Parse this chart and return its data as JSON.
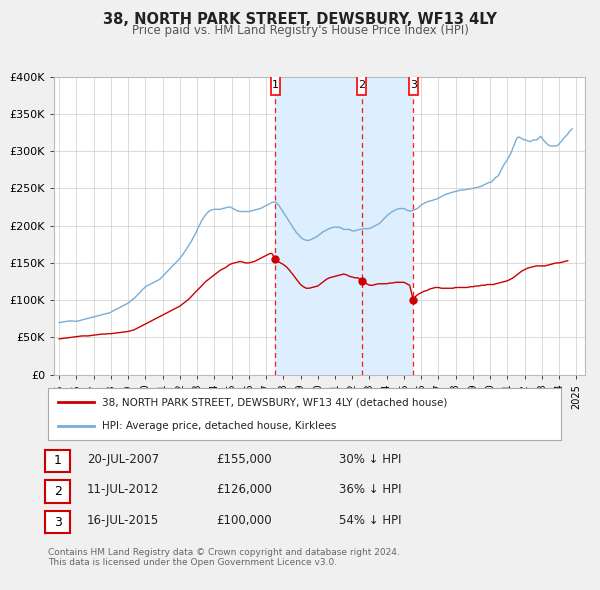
{
  "title": "38, NORTH PARK STREET, DEWSBURY, WF13 4LY",
  "subtitle": "Price paid vs. HM Land Registry's House Price Index (HPI)",
  "legend_property": "38, NORTH PARK STREET, DEWSBURY, WF13 4LY (detached house)",
  "legend_hpi": "HPI: Average price, detached house, Kirklees",
  "footer1": "Contains HM Land Registry data © Crown copyright and database right 2024.",
  "footer2": "This data is licensed under the Open Government Licence v3.0.",
  "property_color": "#cc0000",
  "hpi_color": "#7aadd4",
  "shade_color": "#ddeeff",
  "background_color": "#f0f0f0",
  "plot_bg_color": "#ffffff",
  "grid_color": "#cccccc",
  "transactions": [
    {
      "num": 1,
      "date": "20-JUL-2007",
      "date_x": 2007.54,
      "price": 155000,
      "label": "30% ↓ HPI"
    },
    {
      "num": 2,
      "date": "11-JUL-2012",
      "date_x": 2012.54,
      "price": 126000,
      "label": "36% ↓ HPI"
    },
    {
      "num": 3,
      "date": "16-JUL-2015",
      "date_x": 2015.54,
      "price": 100000,
      "label": "54% ↓ HPI"
    }
  ],
  "ylim": [
    0,
    400000
  ],
  "yticks": [
    0,
    50000,
    100000,
    150000,
    200000,
    250000,
    300000,
    350000,
    400000
  ],
  "ytick_labels": [
    "£0",
    "£50K",
    "£100K",
    "£150K",
    "£200K",
    "£250K",
    "£300K",
    "£350K",
    "£400K"
  ],
  "xlim_start": 1994.7,
  "xlim_end": 2025.5,
  "hpi_data_years": [
    1995.0,
    1995.08,
    1995.17,
    1995.25,
    1995.33,
    1995.42,
    1995.5,
    1995.58,
    1995.67,
    1995.75,
    1995.83,
    1995.92,
    1996.0,
    1996.08,
    1996.17,
    1996.25,
    1996.33,
    1996.42,
    1996.5,
    1996.58,
    1996.67,
    1996.75,
    1996.83,
    1996.92,
    1997.0,
    1997.08,
    1997.17,
    1997.25,
    1997.33,
    1997.42,
    1997.5,
    1997.58,
    1997.67,
    1997.75,
    1997.83,
    1997.92,
    1998.0,
    1998.08,
    1998.17,
    1998.25,
    1998.33,
    1998.42,
    1998.5,
    1998.58,
    1998.67,
    1998.75,
    1998.83,
    1998.92,
    1999.0,
    1999.08,
    1999.17,
    1999.25,
    1999.33,
    1999.42,
    1999.5,
    1999.58,
    1999.67,
    1999.75,
    1999.83,
    1999.92,
    2000.0,
    2000.08,
    2000.17,
    2000.25,
    2000.33,
    2000.42,
    2000.5,
    2000.58,
    2000.67,
    2000.75,
    2000.83,
    2000.92,
    2001.0,
    2001.08,
    2001.17,
    2001.25,
    2001.33,
    2001.42,
    2001.5,
    2001.58,
    2001.67,
    2001.75,
    2001.83,
    2001.92,
    2002.0,
    2002.08,
    2002.17,
    2002.25,
    2002.33,
    2002.42,
    2002.5,
    2002.58,
    2002.67,
    2002.75,
    2002.83,
    2002.92,
    2003.0,
    2003.08,
    2003.17,
    2003.25,
    2003.33,
    2003.42,
    2003.5,
    2003.58,
    2003.67,
    2003.75,
    2003.83,
    2003.92,
    2004.0,
    2004.08,
    2004.17,
    2004.25,
    2004.33,
    2004.42,
    2004.5,
    2004.58,
    2004.67,
    2004.75,
    2004.83,
    2004.92,
    2005.0,
    2005.08,
    2005.17,
    2005.25,
    2005.33,
    2005.42,
    2005.5,
    2005.58,
    2005.67,
    2005.75,
    2005.83,
    2005.92,
    2006.0,
    2006.08,
    2006.17,
    2006.25,
    2006.33,
    2006.42,
    2006.5,
    2006.58,
    2006.67,
    2006.75,
    2006.83,
    2006.92,
    2007.0,
    2007.08,
    2007.17,
    2007.25,
    2007.33,
    2007.42,
    2007.5,
    2007.58,
    2007.67,
    2007.75,
    2007.83,
    2007.92,
    2008.0,
    2008.08,
    2008.17,
    2008.25,
    2008.33,
    2008.42,
    2008.5,
    2008.58,
    2008.67,
    2008.75,
    2008.83,
    2008.92,
    2009.0,
    2009.08,
    2009.17,
    2009.25,
    2009.33,
    2009.42,
    2009.5,
    2009.58,
    2009.67,
    2009.75,
    2009.83,
    2009.92,
    2010.0,
    2010.08,
    2010.17,
    2010.25,
    2010.33,
    2010.42,
    2010.5,
    2010.58,
    2010.67,
    2010.75,
    2010.83,
    2010.92,
    2011.0,
    2011.08,
    2011.17,
    2011.25,
    2011.33,
    2011.42,
    2011.5,
    2011.58,
    2011.67,
    2011.75,
    2011.83,
    2011.92,
    2012.0,
    2012.08,
    2012.17,
    2012.25,
    2012.33,
    2012.42,
    2012.5,
    2012.58,
    2012.67,
    2012.75,
    2012.83,
    2012.92,
    2013.0,
    2013.08,
    2013.17,
    2013.25,
    2013.33,
    2013.42,
    2013.5,
    2013.58,
    2013.67,
    2013.75,
    2013.83,
    2013.92,
    2014.0,
    2014.08,
    2014.17,
    2014.25,
    2014.33,
    2014.42,
    2014.5,
    2014.58,
    2014.67,
    2014.75,
    2014.83,
    2014.92,
    2015.0,
    2015.08,
    2015.17,
    2015.25,
    2015.33,
    2015.42,
    2015.5,
    2015.58,
    2015.67,
    2015.75,
    2015.83,
    2015.92,
    2016.0,
    2016.08,
    2016.17,
    2016.25,
    2016.33,
    2016.42,
    2016.5,
    2016.58,
    2016.67,
    2016.75,
    2016.83,
    2016.92,
    2017.0,
    2017.08,
    2017.17,
    2017.25,
    2017.33,
    2017.42,
    2017.5,
    2017.58,
    2017.67,
    2017.75,
    2017.83,
    2017.92,
    2018.0,
    2018.08,
    2018.17,
    2018.25,
    2018.33,
    2018.42,
    2018.5,
    2018.58,
    2018.67,
    2018.75,
    2018.83,
    2018.92,
    2019.0,
    2019.08,
    2019.17,
    2019.25,
    2019.33,
    2019.42,
    2019.5,
    2019.58,
    2019.67,
    2019.75,
    2019.83,
    2019.92,
    2020.0,
    2020.08,
    2020.17,
    2020.25,
    2020.33,
    2020.42,
    2020.5,
    2020.58,
    2020.67,
    2020.75,
    2020.83,
    2020.92,
    2021.0,
    2021.08,
    2021.17,
    2021.25,
    2021.33,
    2021.42,
    2021.5,
    2021.58,
    2021.67,
    2021.75,
    2021.83,
    2021.92,
    2022.0,
    2022.08,
    2022.17,
    2022.25,
    2022.33,
    2022.42,
    2022.5,
    2022.58,
    2022.67,
    2022.75,
    2022.83,
    2022.92,
    2023.0,
    2023.08,
    2023.17,
    2023.25,
    2023.33,
    2023.42,
    2023.5,
    2023.58,
    2023.67,
    2023.75,
    2023.83,
    2023.92,
    2024.0,
    2024.08,
    2024.17,
    2024.25,
    2024.33,
    2024.42,
    2024.5,
    2024.58,
    2024.67,
    2024.75
  ],
  "hpi_data_values": [
    70000,
    70200,
    70500,
    71000,
    71200,
    71500,
    71800,
    72000,
    72200,
    72000,
    71800,
    71500,
    71500,
    72000,
    72500,
    73000,
    73500,
    74000,
    74500,
    75000,
    75500,
    76000,
    76500,
    77000,
    77500,
    78000,
    78500,
    79000,
    79500,
    80000,
    80500,
    81000,
    81500,
    82000,
    82500,
    83000,
    84000,
    85000,
    86000,
    87000,
    88000,
    89000,
    90000,
    91000,
    92000,
    93000,
    94000,
    95000,
    96000,
    97500,
    99000,
    100500,
    102000,
    104000,
    106000,
    108000,
    110000,
    112000,
    114000,
    116000,
    118000,
    119000,
    120000,
    121000,
    122000,
    123000,
    124000,
    125000,
    126000,
    127000,
    128000,
    130000,
    132000,
    134000,
    136000,
    138000,
    140000,
    142000,
    144000,
    146000,
    148000,
    150000,
    152000,
    154000,
    156000,
    158500,
    161000,
    164000,
    167000,
    170000,
    173000,
    176000,
    179000,
    183000,
    186000,
    190000,
    194000,
    198000,
    202000,
    206000,
    209000,
    212000,
    215000,
    217000,
    219000,
    220000,
    221000,
    221500,
    222000,
    222000,
    222000,
    222000,
    222000,
    222500,
    223000,
    223500,
    224000,
    224500,
    225000,
    225000,
    224000,
    223000,
    222000,
    221000,
    220000,
    219500,
    219000,
    219000,
    219000,
    219000,
    219000,
    219000,
    219000,
    219500,
    220000,
    220500,
    221000,
    221500,
    222000,
    222500,
    223000,
    224000,
    225000,
    226000,
    227000,
    228000,
    229000,
    230000,
    231000,
    231500,
    232000,
    231000,
    229000,
    227000,
    224000,
    221000,
    218000,
    215000,
    212000,
    209000,
    206000,
    203000,
    200000,
    197000,
    194000,
    191000,
    189000,
    187000,
    185000,
    183000,
    182000,
    181000,
    180500,
    180000,
    180500,
    181000,
    182000,
    183000,
    184000,
    185000,
    186000,
    188000,
    189000,
    191000,
    192000,
    193000,
    194000,
    195000,
    196000,
    197000,
    197500,
    198000,
    198000,
    198000,
    198000,
    198000,
    197000,
    196000,
    195000,
    195000,
    195000,
    195000,
    195000,
    194000,
    193000,
    193000,
    193000,
    194000,
    194000,
    195000,
    195000,
    195500,
    196000,
    196000,
    196000,
    196000,
    196500,
    197000,
    198000,
    199000,
    200000,
    201000,
    202000,
    203000,
    205000,
    207000,
    209000,
    211000,
    213000,
    215000,
    216000,
    218000,
    219000,
    220000,
    221000,
    222000,
    222500,
    223000,
    223000,
    223000,
    223000,
    222000,
    221000,
    220000,
    220000,
    220000,
    220500,
    221000,
    222000,
    223000,
    224000,
    226000,
    228000,
    229000,
    230000,
    231000,
    232000,
    232500,
    233000,
    233500,
    234000,
    235000,
    235500,
    236000,
    237000,
    238000,
    239000,
    240000,
    241000,
    242000,
    242500,
    243000,
    244000,
    244500,
    245000,
    245500,
    246000,
    246500,
    247000,
    247500,
    248000,
    248000,
    248000,
    248500,
    249000,
    249000,
    249500,
    250000,
    250000,
    250500,
    251000,
    251500,
    252000,
    252500,
    253000,
    254000,
    255000,
    256000,
    257000,
    258000,
    258000,
    259000,
    261000,
    263000,
    265000,
    266000,
    268000,
    272000,
    276000,
    280000,
    283000,
    286000,
    289000,
    292000,
    296000,
    300000,
    305000,
    310000,
    315000,
    318000,
    319000,
    318000,
    317000,
    316000,
    315000,
    315000,
    314000,
    313000,
    313000,
    314000,
    315000,
    315000,
    315000,
    316000,
    318000,
    320000,
    318000,
    315000,
    313000,
    311000,
    309000,
    308000,
    307000,
    307000,
    307000,
    307000,
    307000,
    308000,
    310000,
    312000,
    314000,
    317000,
    319000,
    321000,
    323000,
    326000,
    328000,
    330000
  ],
  "property_data_years": [
    1995.0,
    1995.17,
    1995.33,
    1995.5,
    1995.67,
    1995.83,
    1996.0,
    1996.17,
    1996.33,
    1996.5,
    1996.67,
    1996.83,
    1997.0,
    1997.17,
    1997.33,
    1997.5,
    1997.67,
    1997.83,
    1998.0,
    1998.17,
    1998.33,
    1998.5,
    1998.67,
    1998.83,
    1999.0,
    1999.17,
    1999.33,
    1999.5,
    1999.67,
    1999.83,
    2000.0,
    2000.17,
    2000.33,
    2000.5,
    2000.67,
    2000.83,
    2001.0,
    2001.17,
    2001.33,
    2001.5,
    2001.67,
    2001.83,
    2002.0,
    2002.17,
    2002.33,
    2002.5,
    2002.67,
    2002.83,
    2003.0,
    2003.17,
    2003.33,
    2003.5,
    2003.67,
    2003.83,
    2004.0,
    2004.17,
    2004.33,
    2004.5,
    2004.67,
    2004.83,
    2005.0,
    2005.17,
    2005.33,
    2005.5,
    2005.67,
    2005.83,
    2006.0,
    2006.17,
    2006.33,
    2006.5,
    2006.67,
    2006.83,
    2007.0,
    2007.17,
    2007.33,
    2007.54,
    2007.67,
    2007.83,
    2008.0,
    2008.17,
    2008.33,
    2008.5,
    2008.67,
    2008.83,
    2009.0,
    2009.17,
    2009.33,
    2009.5,
    2009.67,
    2009.83,
    2010.0,
    2010.17,
    2010.33,
    2010.5,
    2010.67,
    2010.83,
    2011.0,
    2011.17,
    2011.33,
    2011.5,
    2011.67,
    2011.83,
    2012.0,
    2012.17,
    2012.33,
    2012.54,
    2012.67,
    2012.83,
    2013.0,
    2013.17,
    2013.33,
    2013.5,
    2013.67,
    2013.83,
    2014.0,
    2014.17,
    2014.33,
    2014.5,
    2014.67,
    2014.83,
    2015.0,
    2015.17,
    2015.33,
    2015.54,
    2015.67,
    2015.83,
    2016.0,
    2016.17,
    2016.33,
    2016.5,
    2016.67,
    2016.83,
    2017.0,
    2017.17,
    2017.33,
    2017.5,
    2017.67,
    2017.83,
    2018.0,
    2018.17,
    2018.33,
    2018.5,
    2018.67,
    2018.83,
    2019.0,
    2019.17,
    2019.33,
    2019.5,
    2019.67,
    2019.83,
    2020.0,
    2020.17,
    2020.33,
    2020.5,
    2020.67,
    2020.83,
    2021.0,
    2021.17,
    2021.33,
    2021.5,
    2021.67,
    2021.83,
    2022.0,
    2022.17,
    2022.33,
    2022.5,
    2022.67,
    2022.83,
    2023.0,
    2023.17,
    2023.33,
    2023.5,
    2023.67,
    2023.83,
    2024.0,
    2024.17,
    2024.33,
    2024.5
  ],
  "property_data_values": [
    48000,
    48500,
    49000,
    49500,
    50000,
    50500,
    51000,
    51500,
    52000,
    52000,
    52000,
    52500,
    53000,
    53500,
    54000,
    54500,
    54500,
    55000,
    55000,
    55500,
    56000,
    56500,
    57000,
    57500,
    58000,
    59000,
    60000,
    62000,
    64000,
    66000,
    68000,
    70000,
    72000,
    74000,
    76000,
    78000,
    80000,
    82000,
    84000,
    86000,
    88000,
    90000,
    92000,
    95000,
    98000,
    101000,
    105000,
    109000,
    113000,
    117000,
    121000,
    125000,
    128000,
    131000,
    134000,
    137000,
    140000,
    142000,
    144000,
    147000,
    149000,
    150000,
    151000,
    152000,
    151000,
    150000,
    150000,
    151000,
    152000,
    154000,
    156000,
    158000,
    160000,
    162000,
    163000,
    155000,
    152000,
    150000,
    148000,
    145000,
    141000,
    136000,
    131000,
    126000,
    121000,
    118000,
    116000,
    116000,
    117000,
    118000,
    119000,
    122000,
    125000,
    128000,
    130000,
    131000,
    132000,
    133000,
    134000,
    135000,
    134000,
    132000,
    131000,
    130000,
    130000,
    126000,
    124000,
    122000,
    120000,
    120000,
    121000,
    122000,
    122000,
    122000,
    122000,
    123000,
    123000,
    124000,
    124000,
    124000,
    124000,
    122000,
    120000,
    100000,
    105000,
    108000,
    110000,
    112000,
    113000,
    115000,
    116000,
    117000,
    117000,
    116000,
    116000,
    116000,
    116000,
    116000,
    117000,
    117000,
    117000,
    117000,
    117000,
    118000,
    118000,
    119000,
    119000,
    120000,
    120000,
    121000,
    121000,
    121000,
    122000,
    123000,
    124000,
    125000,
    126000,
    128000,
    130000,
    133000,
    136000,
    139000,
    141000,
    143000,
    144000,
    145000,
    146000,
    146000,
    146000,
    146000,
    147000,
    148000,
    149000,
    150000,
    150000,
    151000,
    152000,
    153000
  ]
}
